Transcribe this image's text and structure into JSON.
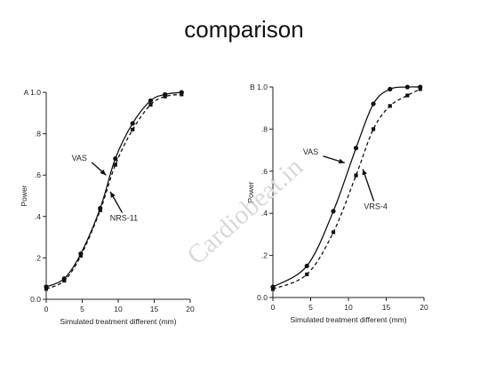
{
  "slide": {
    "title": "comparison",
    "watermark": "Cardiobeat.in"
  },
  "chart_data": [
    {
      "type": "line",
      "panel_label": "A",
      "xlabel": "Simulated treatment different (mm)",
      "ylabel": "Power",
      "xlim": [
        0,
        20
      ],
      "ylim": [
        0,
        1.0
      ],
      "x_ticks": [
        0,
        5,
        10,
        15,
        20
      ],
      "x_tick_labels": [
        "0",
        "5",
        "10",
        "15",
        "20"
      ],
      "y_ticks": [
        0,
        0.2,
        0.4,
        0.6,
        0.8,
        1.0
      ],
      "y_tick_labels": [
        "0.0",
        ".2",
        ".4",
        ".6",
        ".8",
        "A 1.0"
      ],
      "grid": false,
      "series": [
        {
          "name": "VAS",
          "line_style": "solid",
          "marker": "circle",
          "x": [
            0,
            2.5,
            4.8,
            7.5,
            9.6,
            12.0,
            14.5,
            16.5,
            18.8
          ],
          "y": [
            0.06,
            0.1,
            0.22,
            0.44,
            0.68,
            0.85,
            0.96,
            0.99,
            1.0
          ]
        },
        {
          "name": "NRS-11",
          "line_style": "dashed",
          "marker": "square",
          "x": [
            0,
            2.5,
            4.8,
            7.5,
            9.6,
            12.0,
            14.5,
            16.5,
            18.8
          ],
          "y": [
            0.05,
            0.09,
            0.21,
            0.43,
            0.65,
            0.82,
            0.94,
            0.98,
            0.99
          ]
        }
      ],
      "annotations": [
        {
          "text": "VAS",
          "x": 4.6,
          "y": 0.67,
          "arrow_to": [
            8.3,
            0.6
          ]
        },
        {
          "text": "NRS-11",
          "x": 10.8,
          "y": 0.38,
          "arrow_to": [
            8.9,
            0.52
          ]
        }
      ]
    },
    {
      "type": "line",
      "panel_label": "B",
      "xlabel": "Simulated treatment different (mm)",
      "ylabel": "Power",
      "xlim": [
        0,
        20
      ],
      "ylim": [
        0,
        1.0
      ],
      "x_ticks": [
        0,
        5,
        10,
        15,
        20
      ],
      "x_tick_labels": [
        "0",
        "5",
        "10",
        "15",
        "20"
      ],
      "y_ticks": [
        0,
        0.2,
        0.4,
        0.6,
        0.8,
        1.0
      ],
      "y_tick_labels": [
        "0.0",
        ".2",
        ".4",
        ".6",
        ".8",
        "B 1.0"
      ],
      "grid": false,
      "series": [
        {
          "name": "VAS",
          "line_style": "solid",
          "marker": "circle",
          "x": [
            0,
            4.5,
            8.0,
            11.0,
            13.3,
            15.5,
            17.8,
            19.5
          ],
          "y": [
            0.05,
            0.15,
            0.41,
            0.71,
            0.92,
            0.99,
            1.0,
            1.0
          ]
        },
        {
          "name": "VRS-4",
          "line_style": "dashed",
          "marker": "square",
          "x": [
            0,
            4.5,
            8.0,
            11.0,
            13.3,
            15.5,
            17.8,
            19.5
          ],
          "y": [
            0.04,
            0.11,
            0.31,
            0.58,
            0.8,
            0.91,
            0.96,
            0.99
          ]
        }
      ],
      "annotations": [
        {
          "text": "VAS",
          "x": 5.0,
          "y": 0.68,
          "arrow_to": [
            9.5,
            0.64
          ]
        },
        {
          "text": "VRS-4",
          "x": 13.6,
          "y": 0.42,
          "arrow_to": [
            11.9,
            0.61
          ]
        }
      ]
    }
  ]
}
